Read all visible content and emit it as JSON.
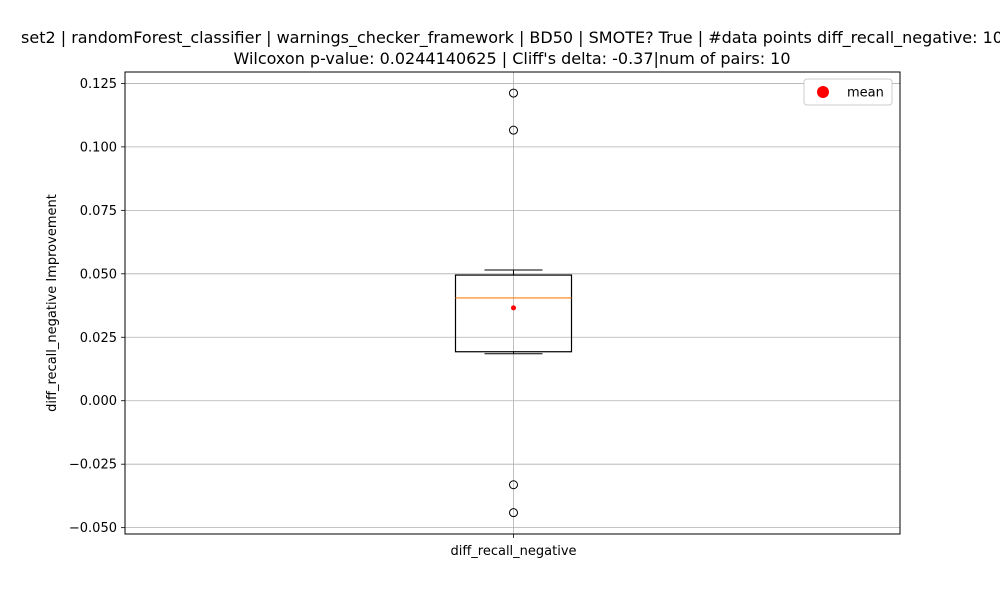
{
  "chart_data": {
    "type": "box",
    "title_line1": "set2 | randomForest_classifier | warnings_checker_framework | BD50 | SMOTE? True | #data points diff_recall_negative: 10",
    "title_line2": "Wilcoxon p-value: 0.0244140625 | Cliff's delta: -0.37|num of pairs: 10",
    "xlabel": "",
    "ylabel": "diff_recall_negative Improvement",
    "categories": [
      "diff_recall_negative"
    ],
    "ylim": [
      -0.0525,
      0.1295
    ],
    "yticks": [
      -0.05,
      -0.025,
      0.0,
      0.025,
      0.05,
      0.075,
      0.1,
      0.125
    ],
    "ytick_labels": [
      "−0.050",
      "−0.025",
      "0.000",
      "0.025",
      "0.050",
      "0.075",
      "0.100",
      "0.125"
    ],
    "grid": true,
    "box": {
      "whisker_low": 0.0185,
      "q1": 0.0193,
      "median": 0.0405,
      "q3": 0.0495,
      "whisker_high": 0.0515,
      "mean": 0.0366,
      "outliers": [
        0.1212,
        0.1066,
        -0.0331,
        -0.0441
      ]
    },
    "colors": {
      "box": "#000000",
      "median": "#ff7f0e",
      "mean": "#ff0000",
      "grid": "#b0b0b0"
    },
    "legend": {
      "position": "top-right",
      "entries": [
        {
          "label": "mean",
          "color": "#ff0000"
        }
      ]
    }
  }
}
